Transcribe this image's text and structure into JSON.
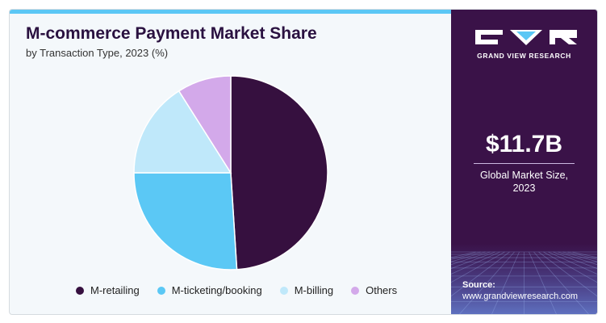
{
  "header": {
    "title": "M-commerce Payment Market Share",
    "subtitle": "by Transaction Type, 2023 (%)"
  },
  "colors": {
    "accent": "#5bc7f5",
    "panel": "#3a1248",
    "m_retailing": "#36103f",
    "m_ticketing": "#5bc8f5",
    "m_billing": "#bfe8fa",
    "others": "#d3a9ea"
  },
  "chart_data": {
    "type": "pie",
    "title": "M-commerce Payment Market Share",
    "subtitle": "by Transaction Type, 2023 (%)",
    "legend_position": "bottom",
    "slices": [
      {
        "label": "M-retailing",
        "value": 49,
        "color": "#36103f"
      },
      {
        "label": "M-ticketing/booking",
        "value": 26,
        "color": "#5bc8f5"
      },
      {
        "label": "M-billing",
        "value": 16,
        "color": "#bfe8fa"
      },
      {
        "label": "Others",
        "value": 9,
        "color": "#d3a9ea"
      }
    ]
  },
  "sidebar": {
    "brand": "GRAND VIEW RESEARCH",
    "logo_icon": "gvr-logo-icon",
    "market_size": "$11.7B",
    "market_label_line1": "Global Market Size,",
    "market_label_line2": "2023",
    "source_label": "Source:",
    "source_url": "www.grandviewresearch.com"
  }
}
